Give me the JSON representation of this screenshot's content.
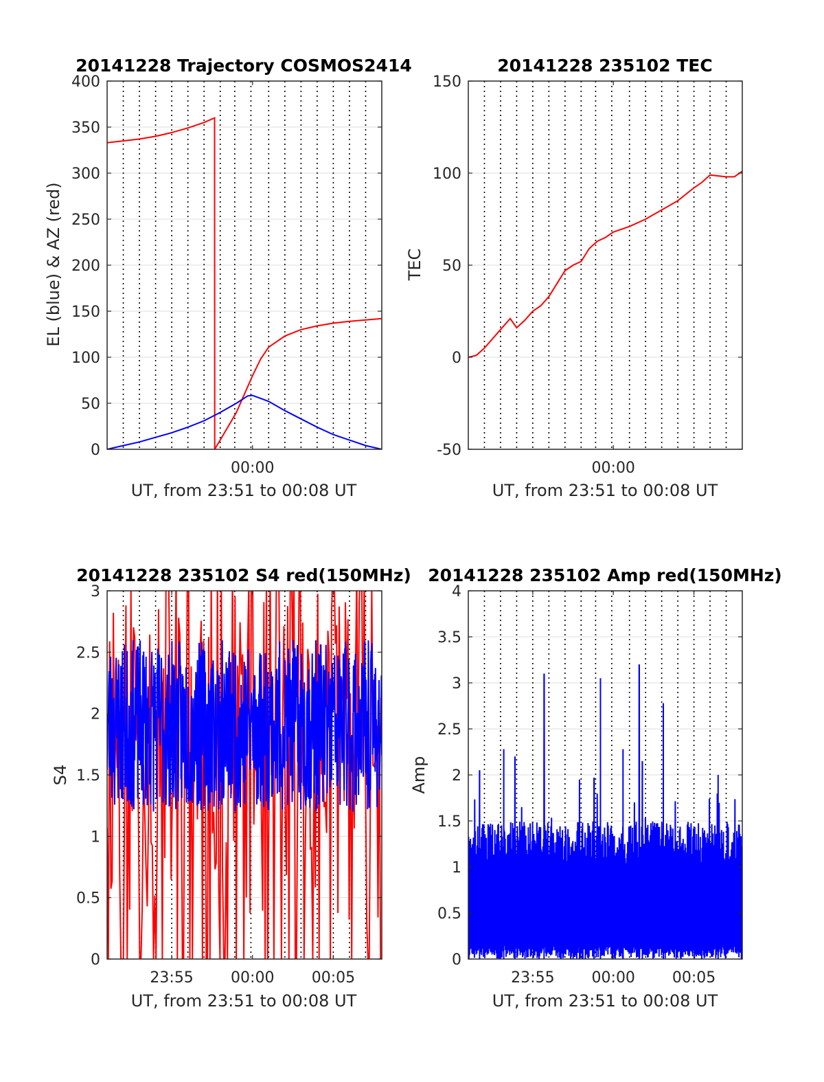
{
  "colors": {
    "red": "#ff0000",
    "blue": "#0000ff",
    "grid": "#dcdcdc",
    "axis": "#262626"
  },
  "chart_data": [
    {
      "type": "line",
      "title": "20141228 Trajectory COSMOS2414",
      "xlabel": "UT, from 23:51 to 00:08 UT",
      "ylabel": "EL (blue) & AZ (red)",
      "xlim_minutes": [
        -9,
        8
      ],
      "ylim": [
        0,
        400
      ],
      "yticks": [
        0,
        50,
        100,
        150,
        200,
        250,
        300,
        350,
        400
      ],
      "yticklabels": [
        "0",
        "50",
        "100",
        "150",
        "200",
        "250",
        "300",
        "350",
        "400"
      ],
      "xticks_minutes": [
        0
      ],
      "xticklabels": [
        "00:00"
      ],
      "grid": true,
      "series": [
        {
          "name": "AZ",
          "color": "#ff0000",
          "x": [
            -9,
            -8,
            -7,
            -6,
            -5,
            -4,
            -3,
            -2.35,
            -2.34,
            -1.5,
            -1,
            -0.5,
            0,
            0.5,
            1,
            2,
            3,
            4,
            5,
            6,
            7,
            8
          ],
          "y": [
            333,
            335,
            337,
            340,
            344,
            349,
            355,
            360,
            0,
            25,
            40,
            60,
            80,
            98,
            111,
            123,
            130,
            134,
            137,
            139,
            140.5,
            142
          ]
        },
        {
          "name": "EL",
          "color": "#0000ff",
          "x": [
            -9,
            -8,
            -7,
            -6,
            -5,
            -4,
            -3,
            -2,
            -1,
            -0.3,
            0,
            1,
            2,
            3,
            4,
            5,
            6,
            7,
            8
          ],
          "y": [
            0,
            4,
            8,
            13,
            18,
            24,
            31,
            40,
            50,
            58,
            58.5,
            52,
            42,
            33,
            24,
            16,
            10,
            4,
            0
          ]
        }
      ]
    },
    {
      "type": "line",
      "title": "20141228 235102 TEC",
      "xlabel": "UT, from 23:51 to 00:08 UT",
      "ylabel": "TEC",
      "xlim_minutes": [
        -9,
        8
      ],
      "ylim": [
        -50,
        150
      ],
      "yticks": [
        -50,
        0,
        50,
        100,
        150
      ],
      "yticklabels": [
        "-50",
        "0",
        "50",
        "100",
        "150"
      ],
      "xticks_minutes": [
        0
      ],
      "xticklabels": [
        "00:00"
      ],
      "grid": true,
      "series": [
        {
          "name": "TEC",
          "color": "#ff0000",
          "x": [
            -9,
            -8.5,
            -8,
            -7.5,
            -7,
            -6.4,
            -6,
            -5.5,
            -5,
            -4.5,
            -4,
            -3.5,
            -3,
            -2.5,
            -2,
            -1.5,
            -1,
            -0.5,
            0,
            1,
            2,
            3,
            4,
            5,
            5.5,
            6,
            7,
            7.5,
            8
          ],
          "y": [
            0,
            1,
            5,
            10,
            15,
            21,
            16,
            20,
            25,
            28,
            33,
            40,
            47,
            50,
            52,
            59,
            63,
            65,
            68,
            71,
            75,
            80,
            85,
            92,
            95,
            99,
            98,
            98,
            101
          ]
        }
      ]
    },
    {
      "type": "line",
      "title": "20141228 235102 S4 red(150MHz)",
      "xlabel": "UT, from 23:51 to 00:08 UT",
      "ylabel": "S4",
      "xlim_minutes": [
        -9,
        8
      ],
      "ylim": [
        0,
        3
      ],
      "yticks": [
        0,
        0.5,
        1,
        1.5,
        2,
        2.5,
        3
      ],
      "yticklabels": [
        "0",
        "0.5",
        "1",
        "1.5",
        "2",
        "2.5",
        "3"
      ],
      "xticks_minutes": [
        -5,
        0,
        5
      ],
      "xticklabels": [
        "23:55",
        "00:00",
        "00:05"
      ],
      "grid": true,
      "noise_series": [
        {
          "name": "S4 red",
          "color": "#ff0000",
          "points": 220,
          "mean": 1.9,
          "spread": 1.6,
          "min": 0,
          "max": 3,
          "dropouts": 34,
          "seed": 11
        },
        {
          "name": "S4 blue",
          "color": "#0000ff",
          "points": 700,
          "mean": 1.9,
          "spread": 0.7,
          "min": 0.95,
          "max": 3,
          "dropouts": 0,
          "seed": 23
        }
      ]
    },
    {
      "type": "line",
      "title": "20141228 235102 Amp red(150MHz)",
      "xlabel": "UT, from 23:51 to 00:08 UT",
      "ylabel": "Amp",
      "xlim_minutes": [
        -9,
        8
      ],
      "ylim": [
        0,
        4
      ],
      "yticks": [
        0,
        0.5,
        1,
        1.5,
        2,
        2.5,
        3,
        3.5,
        4
      ],
      "yticklabels": [
        "0",
        "0.5",
        "1",
        "1.5",
        "2",
        "2.5",
        "3",
        "3.5",
        "4"
      ],
      "xticks_minutes": [
        -5,
        0,
        5
      ],
      "xticklabels": [
        "23:55",
        "00:00",
        "00:05"
      ],
      "grid": true,
      "amp_series": {
        "name": "Amp",
        "color": "#0000ff",
        "points": 900,
        "base": 1.3,
        "seed": 37,
        "peaks": [
          {
            "x": -4.3,
            "y": 3.1
          },
          {
            "x": -0.8,
            "y": 3.05
          },
          {
            "x": 1.6,
            "y": 3.2
          },
          {
            "x": 3.1,
            "y": 2.78
          },
          {
            "x": -6.8,
            "y": 2.28
          },
          {
            "x": -6.1,
            "y": 2.2
          },
          {
            "x": 0.6,
            "y": 2.28
          },
          {
            "x": 1.8,
            "y": 2.15
          },
          {
            "x": -8.3,
            "y": 2.05
          },
          {
            "x": 6.5,
            "y": 2.0
          },
          {
            "x": -2.1,
            "y": 1.95
          },
          {
            "x": -1.2,
            "y": 1.97
          }
        ]
      }
    }
  ]
}
